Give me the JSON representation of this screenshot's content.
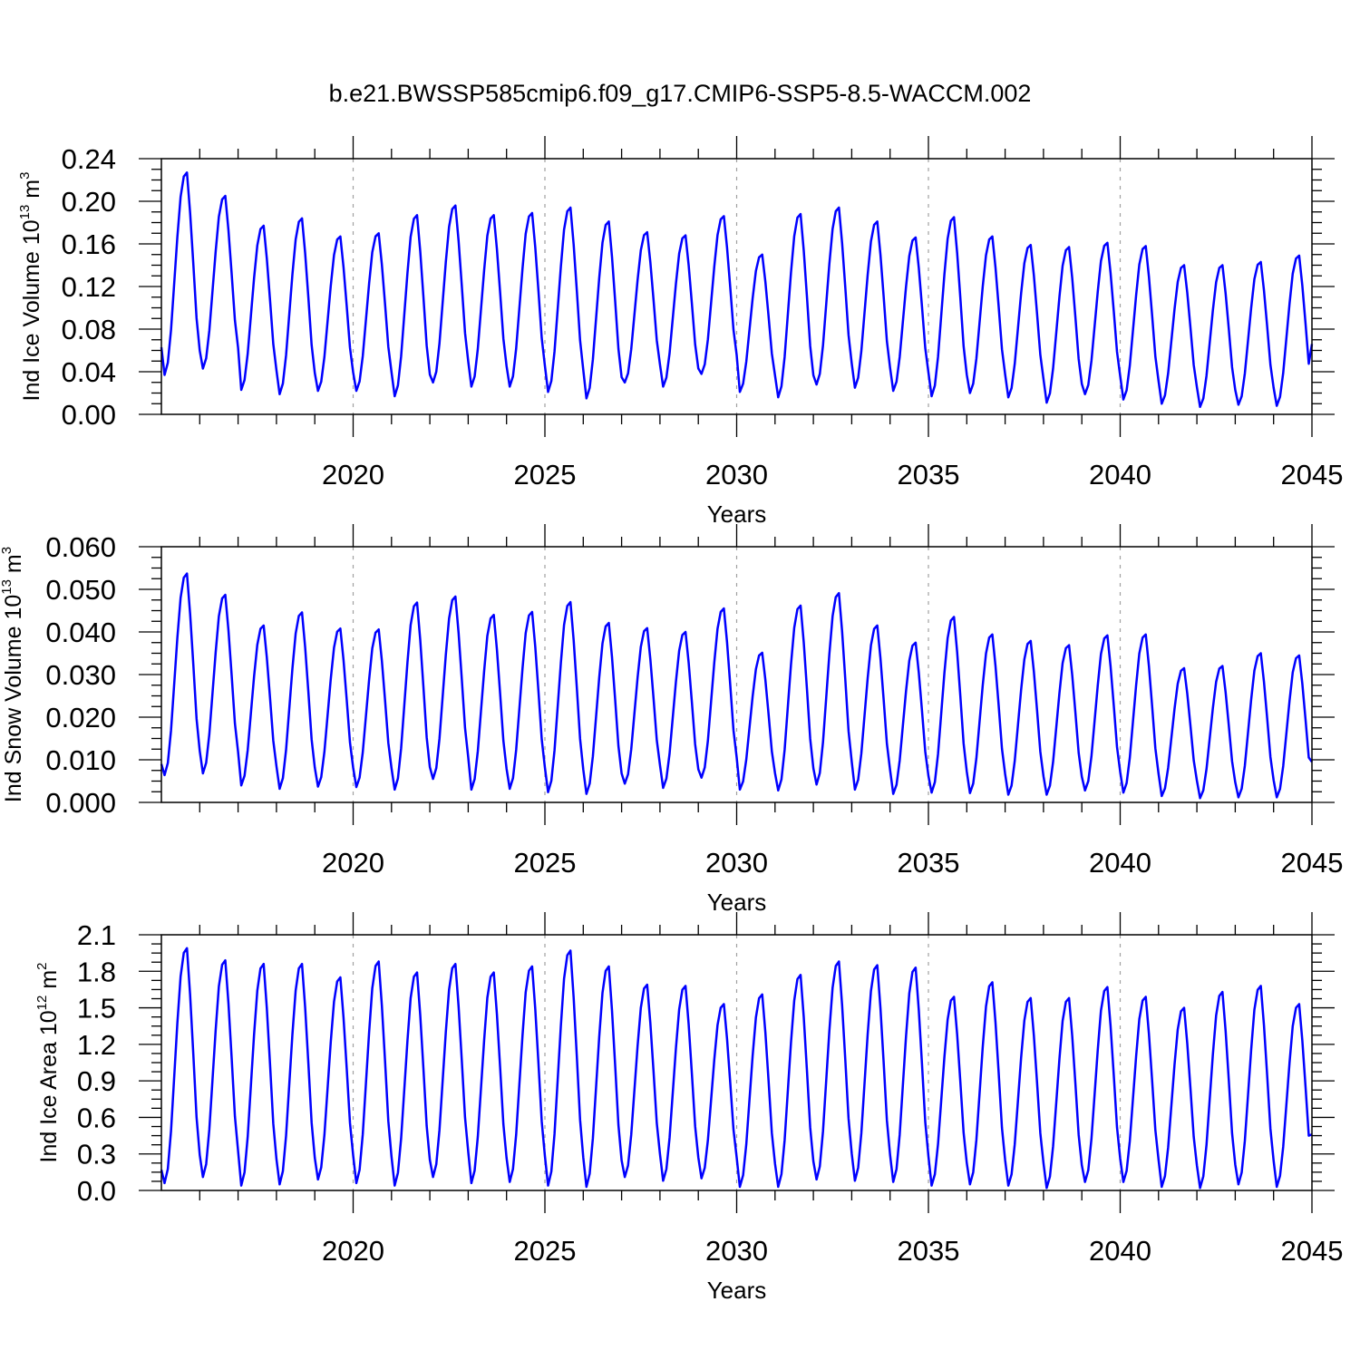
{
  "title": "b.e21.BWSSP585cmip6.f09_g17.CMIP6-SSP5-8.5-WACCM.002",
  "colors": {
    "line": "#0000ff",
    "axis": "#000000",
    "grid": "#a0a0a0"
  },
  "chart_data": [
    {
      "type": "line",
      "ylabel": {
        "text": "Ind Ice Volume 10",
        "sup": "13",
        "unit": " m",
        "unit_sup": "3"
      },
      "xlabel": "Years",
      "xlim": [
        2015,
        2045
      ],
      "ylim": [
        0,
        0.24
      ],
      "x_ticks": [
        "2020",
        "2025",
        "2030",
        "2035",
        "2040",
        "2045"
      ],
      "y_ticks": [
        "0.00",
        "0.04",
        "0.08",
        "0.12",
        "0.16",
        "0.20",
        "0.24"
      ],
      "grid": "vertical dashed at major x ticks",
      "series": [
        {
          "sampling": "monthly, starting 2015 Jan",
          "peak": [
            0.227,
            0.205,
            0.177,
            0.184,
            0.167,
            0.17,
            0.187,
            0.196,
            0.187,
            0.189,
            0.194,
            0.181,
            0.171,
            0.168,
            0.186,
            0.15,
            0.188,
            0.194,
            0.181,
            0.166,
            0.185,
            0.167,
            0.159,
            0.157,
            0.161,
            0.158,
            0.14,
            0.14,
            0.143,
            0.149
          ],
          "trough": [
            0.037,
            0.043,
            0.023,
            0.019,
            0.022,
            0.022,
            0.017,
            0.03,
            0.026,
            0.026,
            0.021,
            0.015,
            0.03,
            0.026,
            0.038,
            0.021,
            0.016,
            0.028,
            0.025,
            0.022,
            0.017,
            0.02,
            0.016,
            0.011,
            0.019,
            0.014,
            0.01,
            0.007,
            0.009,
            0.008
          ],
          "start": 0.063,
          "end": 0.066
        }
      ]
    },
    {
      "type": "line",
      "ylabel": {
        "text": "Ind Snow Volume 10",
        "sup": "13",
        "unit": " m",
        "unit_sup": "3"
      },
      "xlabel": "Years",
      "xlim": [
        2015,
        2045
      ],
      "ylim": [
        0,
        0.06
      ],
      "x_ticks": [
        "2020",
        "2025",
        "2030",
        "2035",
        "2040",
        "2045"
      ],
      "y_ticks": [
        "0.000",
        "0.010",
        "0.020",
        "0.030",
        "0.040",
        "0.050",
        "0.060"
      ],
      "grid": "vertical dashed at major x ticks",
      "series": [
        {
          "sampling": "monthly, starting 2015 Jan",
          "peak": [
            0.0537,
            0.0487,
            0.0415,
            0.0446,
            0.0408,
            0.0406,
            0.0469,
            0.0483,
            0.044,
            0.0447,
            0.047,
            0.0421,
            0.0409,
            0.04,
            0.0455,
            0.0351,
            0.0462,
            0.0491,
            0.0415,
            0.0375,
            0.0435,
            0.0394,
            0.0379,
            0.0369,
            0.0392,
            0.0394,
            0.0315,
            0.032,
            0.035,
            0.0345
          ],
          "trough": [
            0.0064,
            0.0068,
            0.004,
            0.0032,
            0.0037,
            0.0036,
            0.003,
            0.0055,
            0.003,
            0.0032,
            0.0024,
            0.002,
            0.0044,
            0.0034,
            0.0058,
            0.003,
            0.0028,
            0.0042,
            0.003,
            0.002,
            0.0023,
            0.0022,
            0.0018,
            0.0018,
            0.0028,
            0.0023,
            0.0015,
            0.001,
            0.0012,
            0.0012
          ],
          "start": 0.009,
          "end": 0.0095
        }
      ]
    },
    {
      "type": "line",
      "ylabel": {
        "text": "Ind Ice Area 10",
        "sup": "12",
        "unit": " m",
        "unit_sup": "2"
      },
      "xlabel": "Years",
      "xlim": [
        2015,
        2045
      ],
      "ylim": [
        0,
        2.1
      ],
      "x_ticks": [
        "2020",
        "2025",
        "2030",
        "2035",
        "2040",
        "2045"
      ],
      "y_ticks": [
        "0.0",
        "0.3",
        "0.6",
        "0.9",
        "1.2",
        "1.5",
        "1.8",
        "2.1"
      ],
      "grid": "vertical dashed at major x ticks",
      "series": [
        {
          "sampling": "monthly, starting 2015 Jan",
          "peak": [
            1.99,
            1.89,
            1.86,
            1.86,
            1.75,
            1.88,
            1.79,
            1.86,
            1.79,
            1.84,
            1.97,
            1.84,
            1.69,
            1.68,
            1.53,
            1.61,
            1.77,
            1.88,
            1.85,
            1.83,
            1.59,
            1.71,
            1.58,
            1.58,
            1.67,
            1.59,
            1.5,
            1.63,
            1.68,
            1.53
          ],
          "trough": [
            0.06,
            0.11,
            0.04,
            0.05,
            0.09,
            0.06,
            0.04,
            0.11,
            0.06,
            0.07,
            0.04,
            0.03,
            0.11,
            0.08,
            0.1,
            0.03,
            0.03,
            0.09,
            0.08,
            0.07,
            0.04,
            0.05,
            0.04,
            0.02,
            0.07,
            0.07,
            0.03,
            0.02,
            0.05,
            0.03
          ],
          "start": 0.17,
          "end": 0.46
        }
      ]
    }
  ]
}
